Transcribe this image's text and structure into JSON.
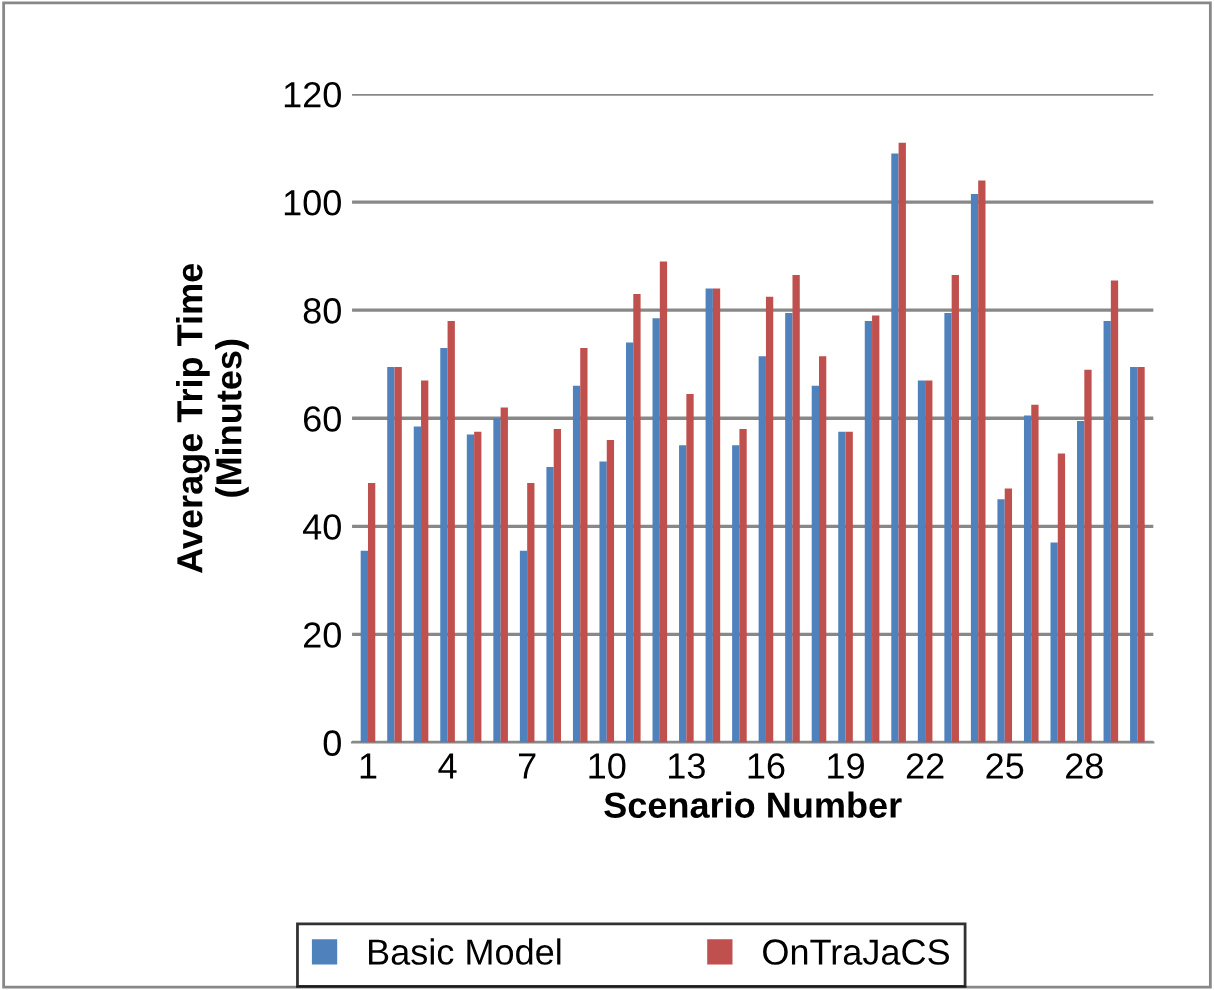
{
  "chart_data": {
    "type": "bar",
    "xlabel": "Scenario Number",
    "ylabel": "Average Trip Time\n(Minutes)",
    "categories": [
      "1",
      null,
      null,
      "4",
      null,
      null,
      "7",
      null,
      null,
      "10",
      null,
      null,
      "13",
      null,
      null,
      "16",
      null,
      null,
      "19",
      null,
      null,
      "22",
      null,
      null,
      "25",
      null,
      null,
      "28",
      null,
      null
    ],
    "series": [
      {
        "name": "Basic Model",
        "color": "#4f81bd",
        "values": [
          35.5,
          69.5,
          58.5,
          73,
          57,
          60,
          35.5,
          51,
          66,
          52,
          74,
          78.5,
          55,
          84,
          55,
          71.5,
          79.5,
          66,
          57.5,
          78,
          109,
          67,
          79.5,
          101.5,
          45,
          60.5,
          37,
          59.5,
          78,
          69.5
        ]
      },
      {
        "name": "OnTraJaCS",
        "color": "#c0504d",
        "values": [
          48,
          69.5,
          67,
          78,
          57.5,
          62,
          48,
          58,
          73,
          56,
          83,
          89,
          64.5,
          84,
          58,
          82.5,
          86.5,
          71.5,
          57.5,
          79,
          111,
          67,
          86.5,
          104,
          47,
          62.5,
          53.5,
          69,
          85.5,
          69.5
        ]
      }
    ],
    "ylim": [
      0,
      120
    ],
    "yticks": [
      0,
      20,
      40,
      60,
      80,
      100,
      120
    ],
    "grid": "y",
    "legend": "bottom"
  }
}
